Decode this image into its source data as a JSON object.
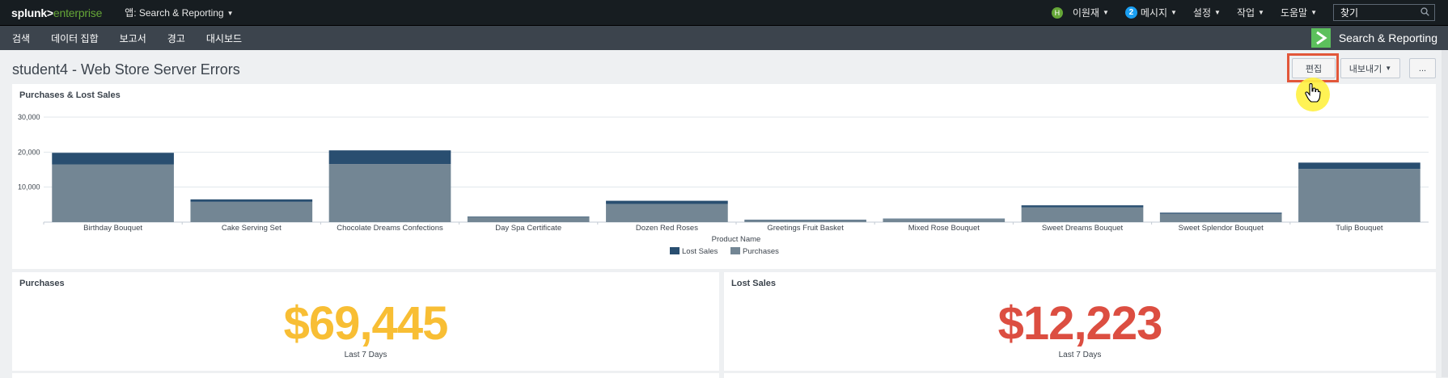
{
  "topbar": {
    "logo_main": "splunk>",
    "logo_sub": "enterprise",
    "app_menu": "앱: Search & Reporting",
    "user_initial": "H",
    "user_name": "이원재",
    "messages_count": "2",
    "messages_label": "메시지",
    "settings_label": "설정",
    "activity_label": "작업",
    "help_label": "도움말",
    "find_placeholder": "찾기"
  },
  "appbar": {
    "nav": [
      "검색",
      "데이터 집합",
      "보고서",
      "경고",
      "대시보드"
    ],
    "app_name": "Search & Reporting"
  },
  "dashboard": {
    "title": "student4 - Web Store Server Errors",
    "edit_label": "편집",
    "export_label": "내보내기",
    "more_label": "..."
  },
  "chart_panel": {
    "title": "Purchases & Lost Sales"
  },
  "chart_data": {
    "type": "bar",
    "stacked": true,
    "title": "Purchases & Lost Sales",
    "xlabel": "Product Name",
    "ylabel": "",
    "ylim": [
      0,
      30000
    ],
    "yticks": [
      10000,
      20000,
      30000
    ],
    "ytick_labels": [
      "10,000",
      "20,000",
      "30,000"
    ],
    "grid": true,
    "legend": "bottom",
    "categories": [
      "Birthday Bouquet",
      "Cake Serving Set",
      "Chocolate Dreams Confections",
      "Day Spa Certificate",
      "Dozen Red Roses",
      "Greetings Fruit Basket",
      "Mixed Rose Bouquet",
      "Sweet Dreams Bouquet",
      "Sweet Splendor Bouquet",
      "Tulip Bouquet"
    ],
    "series": [
      {
        "name": "Purchases",
        "color": "#738694",
        "values": [
          16500,
          5800,
          16600,
          1500,
          5200,
          600,
          900,
          4200,
          2400,
          15200
        ]
      },
      {
        "name": "Lost Sales",
        "color": "#294e70",
        "values": [
          3300,
          700,
          3900,
          100,
          900,
          100,
          100,
          600,
          300,
          1800
        ]
      }
    ],
    "legend_order": [
      "Lost Sales",
      "Purchases"
    ]
  },
  "purchases_panel": {
    "title": "Purchases",
    "value": "$69,445",
    "caption": "Last 7 Days",
    "color": "#f8be34"
  },
  "lost_sales_panel": {
    "title": "Lost Sales",
    "value": "$12,223",
    "caption": "Last 7 Days",
    "color": "#dc4e41"
  }
}
